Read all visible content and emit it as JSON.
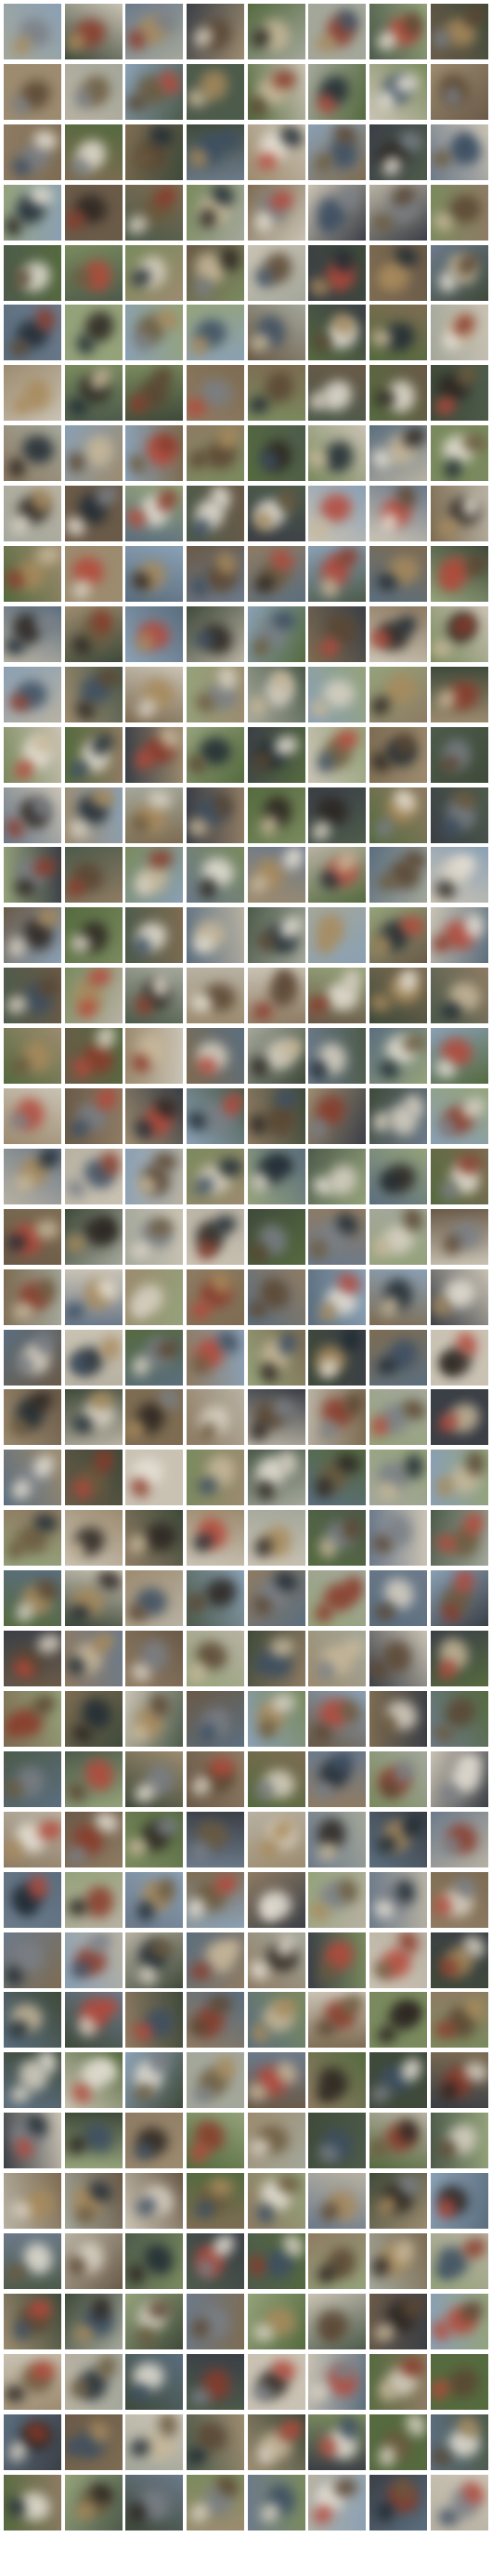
{
  "grid": {
    "columns": 8,
    "rows": 42,
    "palette": {
      "backgrounds": [
        "#7a8a5e",
        "#5b6e7e",
        "#8e7b63",
        "#3f4a3a",
        "#a3a79a",
        "#6c7a8a",
        "#9c8b6f",
        "#4d5b4b",
        "#b7b1a2",
        "#6a5a48",
        "#8aa0b4",
        "#556a3f",
        "#c9c2b3",
        "#3b3f46",
        "#7d6c52",
        "#94a27a"
      ],
      "subjects": [
        "#2a2420",
        "#d9d2c4",
        "#8a3a2a",
        "#5a4632",
        "#c8b89a",
        "#3c4e62",
        "#b5483a",
        "#e6e1d6",
        "#6b5a3e",
        "#1f2a33",
        "#a88a5c",
        "#7a7f86"
      ]
    }
  }
}
